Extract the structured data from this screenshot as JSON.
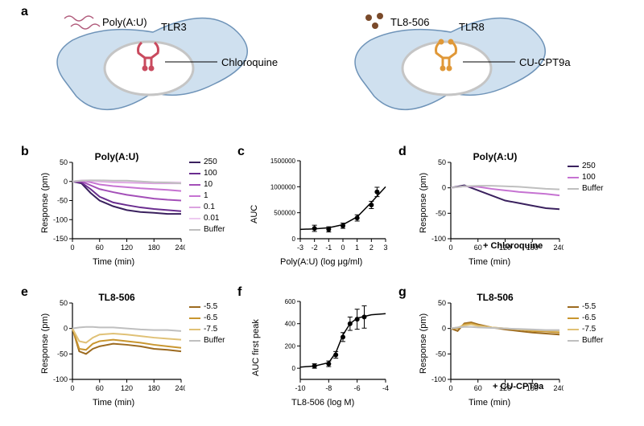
{
  "labels": {
    "a": "a",
    "b": "b",
    "c": "c",
    "d": "d",
    "e": "e",
    "f": "f",
    "g": "g"
  },
  "diagram": {
    "cell_fill": "#cfe0ef",
    "cell_stroke": "#6e93b8",
    "nucleus_fill": "#ffffff",
    "nucleus_stroke": "#c5c5c5",
    "left": {
      "ligand": "Poly(A:U)",
      "receptor": "TLR3",
      "inhibitor": "Chloroquine",
      "ligand_color": "#b05a7a",
      "receptor_color": "#c94a5e"
    },
    "right": {
      "ligand": "TL8-506",
      "receptor": "TLR8",
      "inhibitor": "CU-CPT9a",
      "ligand_color": "#7a4a2a",
      "receptor_color": "#e09838"
    }
  },
  "panel_b": {
    "title": "Poly(A:U)",
    "type": "line",
    "xlim": [
      0,
      240
    ],
    "xtick_step": 60,
    "ylim": [
      -150,
      50
    ],
    "ytick_step": 50,
    "xlabel": "Time (min)",
    "ylabel": "Response (pm)",
    "label_fontsize": 11,
    "background": "#ffffff",
    "legend_items": [
      "250",
      "100",
      "10",
      "1",
      "0.1",
      "0.01",
      "Buffer"
    ],
    "legend_colors": [
      "#3a215e",
      "#6a2d8f",
      "#a34fb8",
      "#c673d2",
      "#dba2e0",
      "#eecaf0",
      "#bfbfbf"
    ],
    "series": {
      "250": [
        [
          0,
          0
        ],
        [
          20,
          -5
        ],
        [
          40,
          -30
        ],
        [
          60,
          -50
        ],
        [
          90,
          -65
        ],
        [
          120,
          -75
        ],
        [
          150,
          -80
        ],
        [
          180,
          -82
        ],
        [
          210,
          -85
        ],
        [
          240,
          -85
        ]
      ],
      "100": [
        [
          0,
          0
        ],
        [
          20,
          -3
        ],
        [
          40,
          -20
        ],
        [
          60,
          -40
        ],
        [
          90,
          -55
        ],
        [
          120,
          -62
        ],
        [
          150,
          -68
        ],
        [
          180,
          -72
        ],
        [
          210,
          -75
        ],
        [
          240,
          -78
        ]
      ],
      "10": [
        [
          0,
          0
        ],
        [
          20,
          0
        ],
        [
          40,
          -10
        ],
        [
          60,
          -20
        ],
        [
          90,
          -28
        ],
        [
          120,
          -35
        ],
        [
          150,
          -40
        ],
        [
          180,
          -45
        ],
        [
          210,
          -48
        ],
        [
          240,
          -50
        ]
      ],
      "1": [
        [
          0,
          0
        ],
        [
          20,
          2
        ],
        [
          40,
          -2
        ],
        [
          60,
          -8
        ],
        [
          90,
          -12
        ],
        [
          120,
          -15
        ],
        [
          150,
          -18
        ],
        [
          180,
          -20
        ],
        [
          210,
          -22
        ],
        [
          240,
          -25
        ]
      ],
      "0.1": [
        [
          0,
          0
        ],
        [
          20,
          2
        ],
        [
          40,
          2
        ],
        [
          60,
          0
        ],
        [
          90,
          -2
        ],
        [
          120,
          -3
        ],
        [
          150,
          -4
        ],
        [
          180,
          -5
        ],
        [
          210,
          -5
        ],
        [
          240,
          -5
        ]
      ],
      "0.01": [
        [
          0,
          0
        ],
        [
          20,
          3
        ],
        [
          40,
          3
        ],
        [
          60,
          2
        ],
        [
          90,
          1
        ],
        [
          120,
          0
        ],
        [
          150,
          0
        ],
        [
          180,
          -2
        ],
        [
          210,
          -2
        ],
        [
          240,
          -2
        ]
      ],
      "Buffer": [
        [
          0,
          0
        ],
        [
          20,
          2
        ],
        [
          40,
          3
        ],
        [
          60,
          3
        ],
        [
          90,
          2
        ],
        [
          120,
          2
        ],
        [
          150,
          0
        ],
        [
          180,
          -2
        ],
        [
          210,
          -3
        ],
        [
          240,
          -5
        ]
      ]
    }
  },
  "panel_c": {
    "type": "scatter",
    "xlabel": "Poly(A:U) (log μg/ml)",
    "ylabel": "AUC",
    "xlim": [
      -3,
      3
    ],
    "xtick_step": 1,
    "ylim": [
      0,
      1500000
    ],
    "yticks": [
      0,
      500000,
      1000000,
      1500000
    ],
    "ytick_labels": [
      "0",
      "500000",
      "1000000",
      "1500000"
    ],
    "marker_color": "#000000",
    "points": [
      [
        -2,
        200000
      ],
      [
        -1,
        180000
      ],
      [
        0,
        250000
      ],
      [
        1,
        400000
      ],
      [
        2,
        650000
      ],
      [
        2.4,
        900000
      ]
    ],
    "errors": [
      60000,
      50000,
      50000,
      60000,
      70000,
      90000
    ],
    "fit": [
      [
        -3,
        180000
      ],
      [
        -2,
        190000
      ],
      [
        -1,
        210000
      ],
      [
        0,
        270000
      ],
      [
        1,
        420000
      ],
      [
        2,
        700000
      ],
      [
        3,
        1000000
      ]
    ]
  },
  "panel_d": {
    "title": "Poly(A:U)",
    "note": "+ Chloroquine",
    "xlim": [
      0,
      240
    ],
    "xtick_step": 60,
    "ylim": [
      -100,
      50
    ],
    "ytick_step": 50,
    "xlabel": "Time (min)",
    "ylabel": "Response (pm)",
    "legend_items": [
      "250",
      "100",
      "Buffer"
    ],
    "legend_colors": [
      "#3a215e",
      "#c673d2",
      "#bfbfbf"
    ],
    "series": {
      "250": [
        [
          0,
          0
        ],
        [
          30,
          5
        ],
        [
          60,
          -5
        ],
        [
          90,
          -15
        ],
        [
          120,
          -25
        ],
        [
          150,
          -30
        ],
        [
          180,
          -35
        ],
        [
          210,
          -40
        ],
        [
          240,
          -42
        ]
      ],
      "100": [
        [
          0,
          0
        ],
        [
          30,
          3
        ],
        [
          60,
          2
        ],
        [
          90,
          -2
        ],
        [
          120,
          -5
        ],
        [
          150,
          -8
        ],
        [
          180,
          -10
        ],
        [
          210,
          -12
        ],
        [
          240,
          -15
        ]
      ],
      "Buffer": [
        [
          0,
          0
        ],
        [
          30,
          3
        ],
        [
          60,
          4
        ],
        [
          90,
          4
        ],
        [
          120,
          3
        ],
        [
          150,
          2
        ],
        [
          180,
          0
        ],
        [
          210,
          -2
        ],
        [
          240,
          -3
        ]
      ]
    }
  },
  "panel_e": {
    "title": "TL8-506",
    "xlim": [
      0,
      240
    ],
    "xtick_step": 60,
    "ylim": [
      -100,
      50
    ],
    "ytick_step": 50,
    "xlabel": "Time (min)",
    "ylabel": "Response (pm)",
    "legend_items": [
      "-5.5",
      "-6.5",
      "-7.5",
      "Buffer"
    ],
    "legend_colors": [
      "#9c6a1f",
      "#c9962f",
      "#e0c176",
      "#bfbfbf"
    ],
    "series": {
      "-5.5": [
        [
          0,
          0
        ],
        [
          15,
          -45
        ],
        [
          30,
          -50
        ],
        [
          45,
          -40
        ],
        [
          60,
          -35
        ],
        [
          90,
          -30
        ],
        [
          120,
          -32
        ],
        [
          150,
          -35
        ],
        [
          180,
          -40
        ],
        [
          210,
          -42
        ],
        [
          240,
          -45
        ]
      ],
      "-6.5": [
        [
          0,
          0
        ],
        [
          15,
          -40
        ],
        [
          30,
          -42
        ],
        [
          45,
          -30
        ],
        [
          60,
          -25
        ],
        [
          90,
          -22
        ],
        [
          120,
          -25
        ],
        [
          150,
          -28
        ],
        [
          180,
          -32
        ],
        [
          210,
          -35
        ],
        [
          240,
          -38
        ]
      ],
      "-7.5": [
        [
          0,
          0
        ],
        [
          15,
          -25
        ],
        [
          30,
          -28
        ],
        [
          45,
          -18
        ],
        [
          60,
          -12
        ],
        [
          90,
          -10
        ],
        [
          120,
          -12
        ],
        [
          150,
          -15
        ],
        [
          180,
          -18
        ],
        [
          210,
          -20
        ],
        [
          240,
          -22
        ]
      ],
      "Buffer": [
        [
          0,
          0
        ],
        [
          15,
          2
        ],
        [
          30,
          3
        ],
        [
          45,
          3
        ],
        [
          60,
          2
        ],
        [
          90,
          2
        ],
        [
          120,
          0
        ],
        [
          150,
          -2
        ],
        [
          180,
          -3
        ],
        [
          210,
          -3
        ],
        [
          240,
          -5
        ]
      ]
    }
  },
  "panel_f": {
    "xlabel": "TL8-506 (log M)",
    "ylabel": "AUC first peak",
    "xlim": [
      -10,
      -4
    ],
    "xtick_step": 2,
    "ylim": [
      -100,
      600
    ],
    "yticks": [
      0,
      200,
      400,
      600
    ],
    "points": [
      [
        -9,
        20
      ],
      [
        -8,
        40
      ],
      [
        -7.5,
        120
      ],
      [
        -7,
        280
      ],
      [
        -6.5,
        400
      ],
      [
        -6,
        440
      ],
      [
        -5.5,
        460
      ]
    ],
    "errors": [
      20,
      25,
      30,
      40,
      60,
      90,
      100
    ],
    "fit": [
      [
        -10,
        10
      ],
      [
        -9,
        20
      ],
      [
        -8,
        50
      ],
      [
        -7.5,
        140
      ],
      [
        -7,
        300
      ],
      [
        -6.5,
        400
      ],
      [
        -6,
        450
      ],
      [
        -5,
        480
      ],
      [
        -4,
        490
      ]
    ],
    "marker_color": "#000000"
  },
  "panel_g": {
    "title": "TL8-506",
    "note": "+ CU-CPT9a",
    "xlim": [
      0,
      240
    ],
    "xtick_step": 60,
    "ylim": [
      -100,
      50
    ],
    "ytick_step": 50,
    "xlabel": "Time (min)",
    "ylabel": "Response (pm)",
    "legend_items": [
      "-5.5",
      "-6.5",
      "-7.5",
      "Buffer"
    ],
    "legend_colors": [
      "#9c6a1f",
      "#c9962f",
      "#e0c176",
      "#bfbfbf"
    ],
    "series": {
      "-5.5": [
        [
          0,
          0
        ],
        [
          15,
          -5
        ],
        [
          30,
          10
        ],
        [
          45,
          12
        ],
        [
          60,
          8
        ],
        [
          90,
          2
        ],
        [
          120,
          -2
        ],
        [
          150,
          -5
        ],
        [
          180,
          -8
        ],
        [
          210,
          -10
        ],
        [
          240,
          -12
        ]
      ],
      "-6.5": [
        [
          0,
          0
        ],
        [
          15,
          0
        ],
        [
          30,
          8
        ],
        [
          45,
          10
        ],
        [
          60,
          6
        ],
        [
          90,
          2
        ],
        [
          120,
          0
        ],
        [
          150,
          -2
        ],
        [
          180,
          -5
        ],
        [
          210,
          -6
        ],
        [
          240,
          -8
        ]
      ],
      "-7.5": [
        [
          0,
          0
        ],
        [
          15,
          2
        ],
        [
          30,
          6
        ],
        [
          45,
          8
        ],
        [
          60,
          5
        ],
        [
          90,
          2
        ],
        [
          120,
          0
        ],
        [
          150,
          -2
        ],
        [
          180,
          -3
        ],
        [
          210,
          -4
        ],
        [
          240,
          -5
        ]
      ],
      "Buffer": [
        [
          0,
          0
        ],
        [
          15,
          2
        ],
        [
          30,
          3
        ],
        [
          45,
          3
        ],
        [
          60,
          2
        ],
        [
          90,
          1
        ],
        [
          120,
          0
        ],
        [
          150,
          -1
        ],
        [
          180,
          -2
        ],
        [
          210,
          -3
        ],
        [
          240,
          -3
        ]
      ]
    }
  }
}
